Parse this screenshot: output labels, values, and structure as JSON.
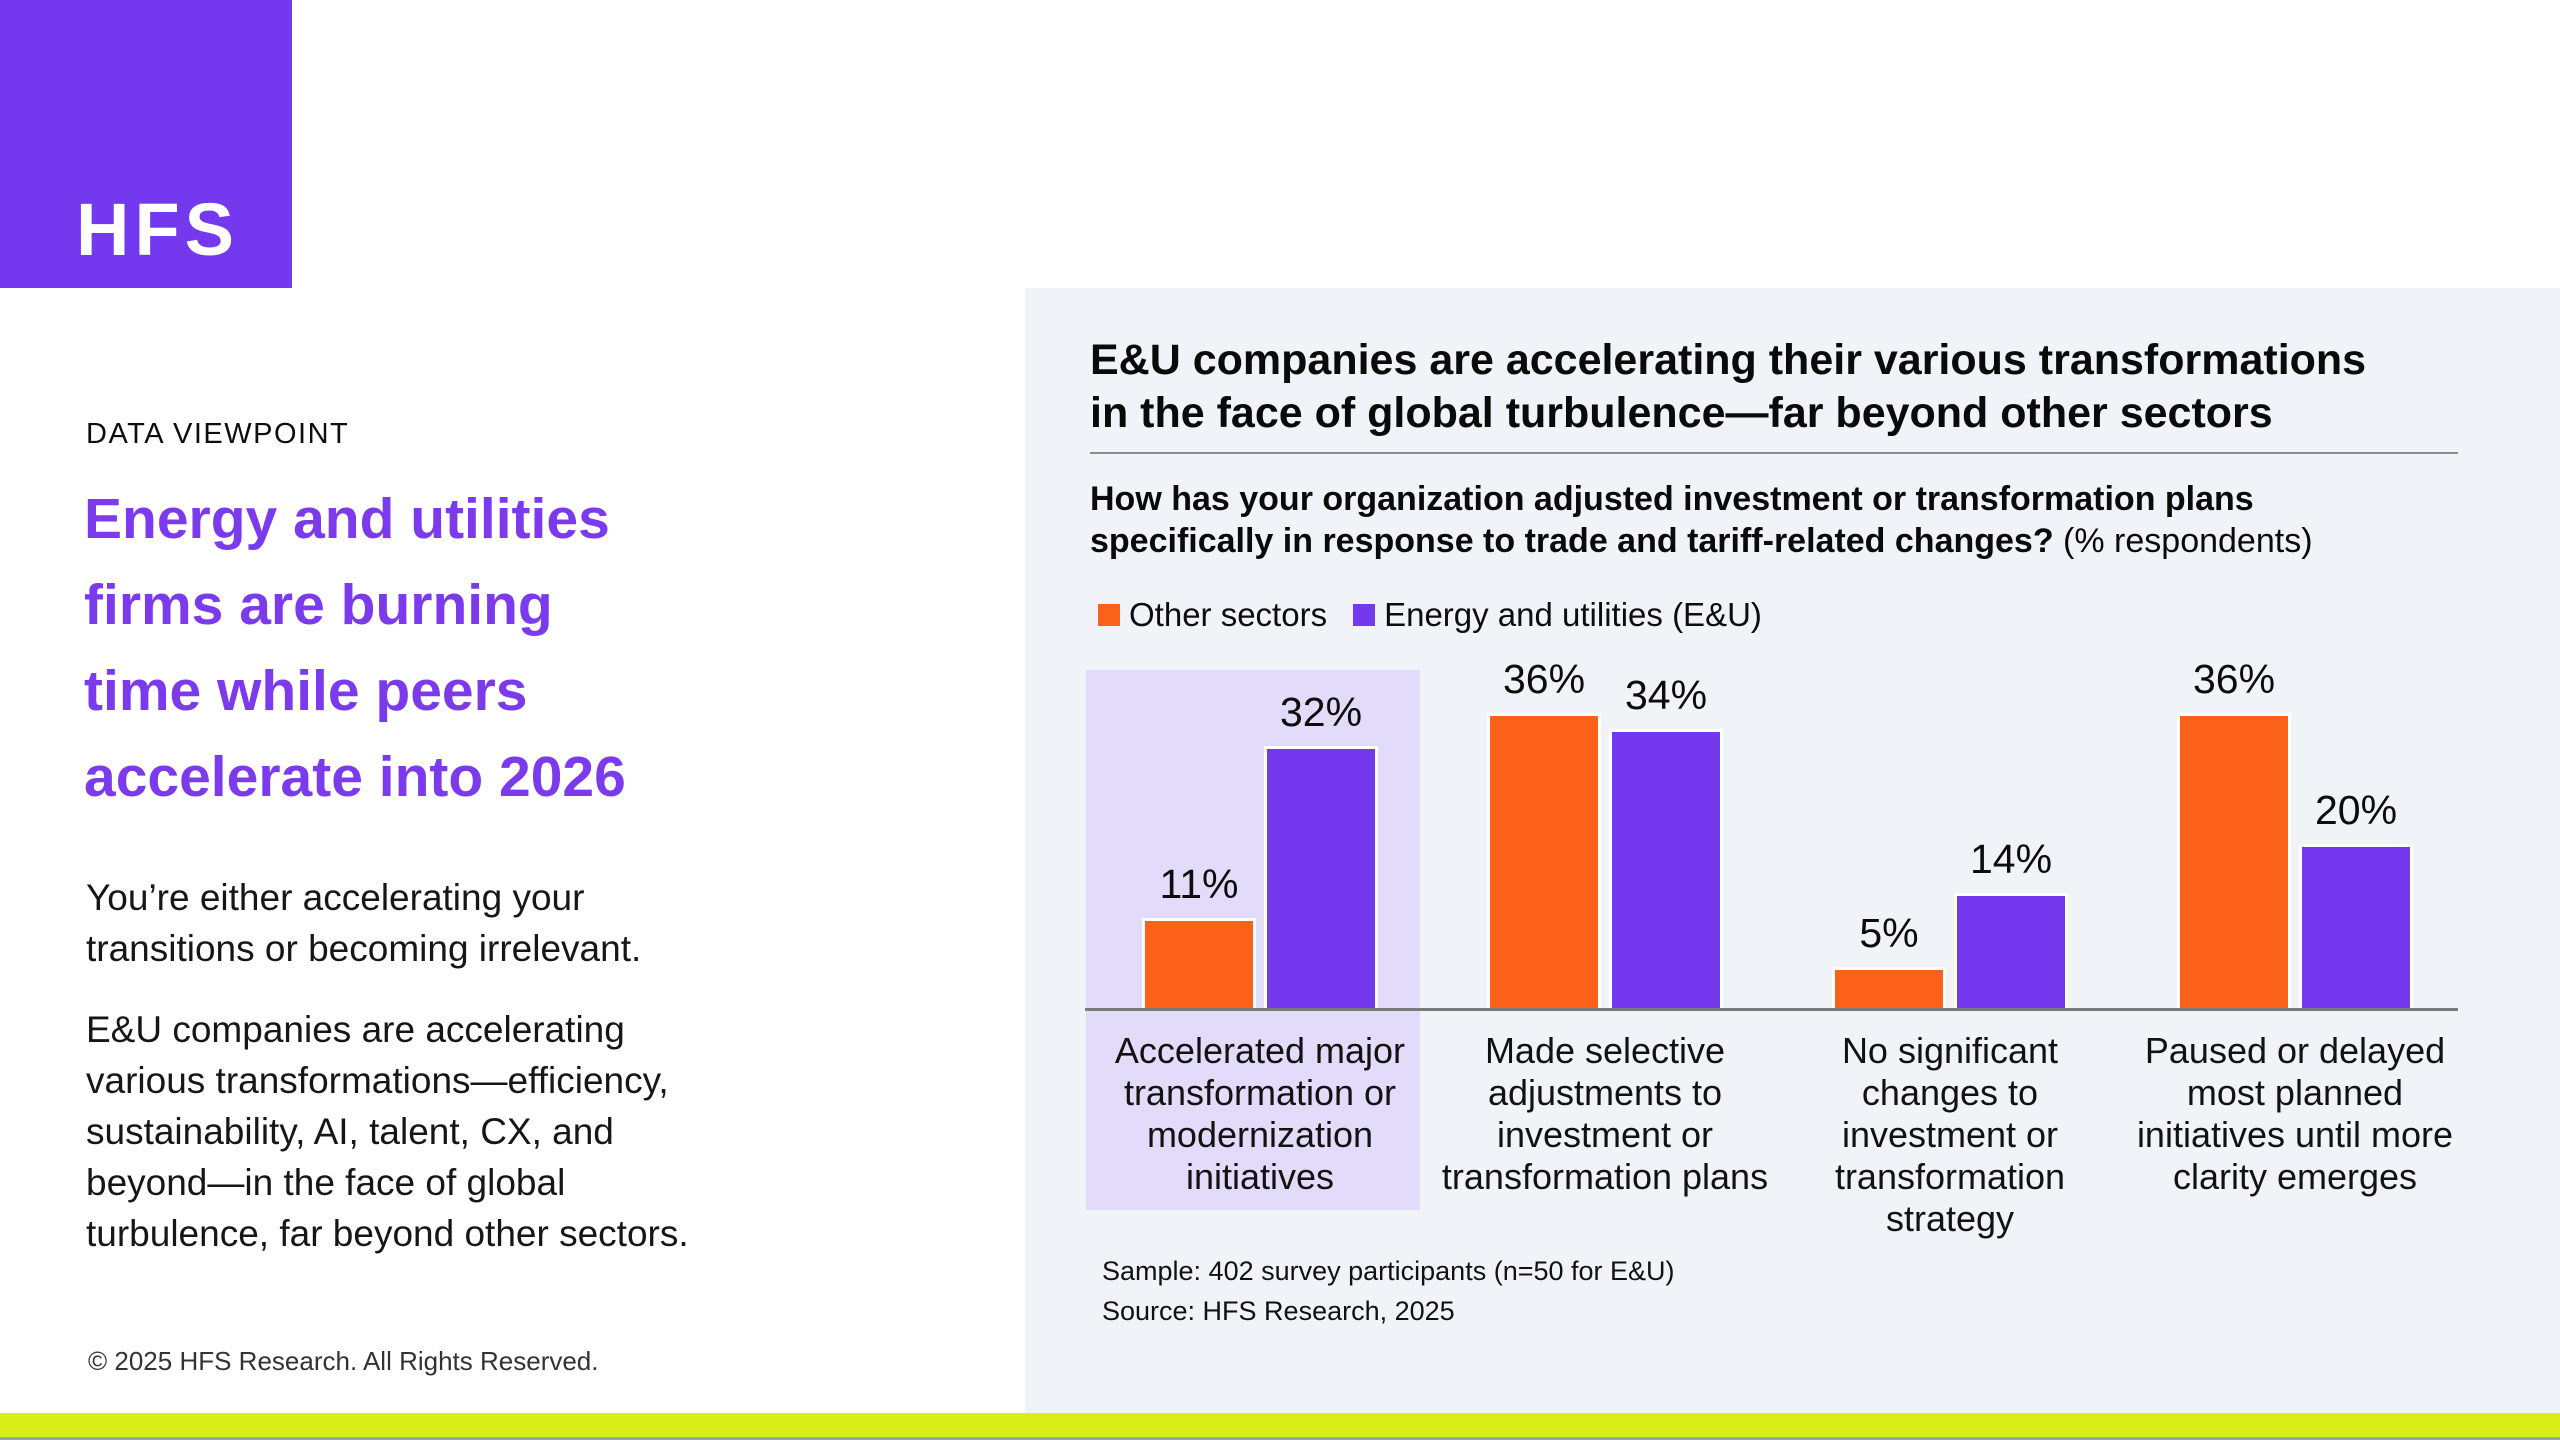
{
  "page": {
    "background": "#ffffff",
    "panel_background": "#F0F4F8",
    "footer_bar_color": "#D9EE16"
  },
  "brand": {
    "logo_text": "HFS",
    "logo_bg": "#7438EE"
  },
  "left": {
    "eyebrow": "DATA VIEWPOINT",
    "headline": "Energy and utilities\nfirms are burning\ntime while peers\naccelerate into 2026",
    "headline_color": "#7B3BEC",
    "para1": "You’re either accelerating your\ntransitions or becoming irrelevant.",
    "para2": "E&U companies are accelerating\nvarious transformations—efficiency,\nsustainability, AI, talent, CX, and\nbeyond—in the face of global\nturbulence, far beyond other sectors.",
    "copyright": "© 2025 HFS Research. All Rights Reserved."
  },
  "panel": {
    "sample": "Sample: 402 survey participants (n=50 for E&U)",
    "source": "Source: HFS Research, 2025"
  },
  "chart_data": {
    "type": "bar",
    "title": "E&U companies are accelerating their various transformations\nin the face of global turbulence—far beyond other sectors",
    "subtitle_bold": "How has your organization adjusted investment or transformation plans\nspecifically in response to trade and tariff-related changes?",
    "subtitle_suffix": " (% respondents)",
    "categories": [
      "Accelerated major\ntransformation or\nmodernization\ninitiatives",
      "Made selective\nadjustments to\ninvestment or\ntransformation plans",
      "No significant\nchanges to\ninvestment or\ntransformation\nstrategy",
      "Paused or delayed\nmost planned\ninitiatives until more\nclarity emerges"
    ],
    "series": [
      {
        "name": "Other sectors",
        "color": "#FC611A",
        "values": [
          11,
          36,
          5,
          36
        ]
      },
      {
        "name": "Energy and utilities (E&U)",
        "color": "#7438EE",
        "values": [
          32,
          34,
          14,
          20
        ]
      }
    ],
    "value_suffix": "%",
    "ylim": [
      0,
      40
    ],
    "grid": false,
    "legend_position": "top-left",
    "highlight_category_index": 0,
    "highlight_color": "#E3DBFA",
    "axis_color": "#7A7A7A"
  }
}
